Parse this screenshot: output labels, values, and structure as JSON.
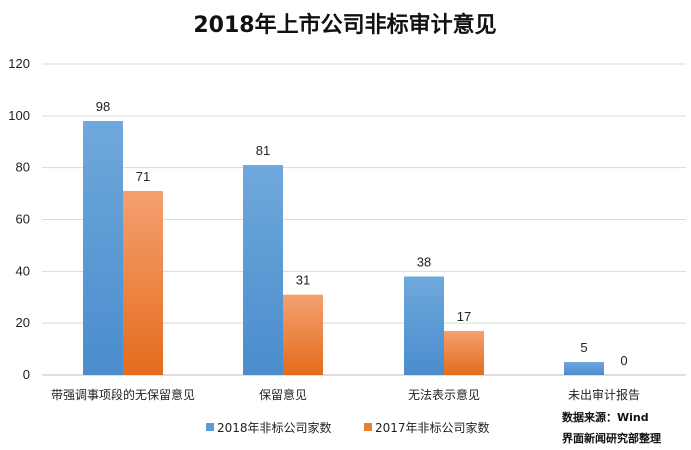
{
  "chart_data": {
    "type": "bar",
    "title": "2018年上市公司非标审计意见",
    "categories": [
      "带强调事项段的无保留意见",
      "保留意见",
      "无法表示意见",
      "未出审计报告"
    ],
    "series": [
      {
        "name": "2018年非标公司家数",
        "values": [
          98,
          81,
          38,
          5
        ],
        "color": "#5b9bd5"
      },
      {
        "name": "2017年非标公司家数",
        "values": [
          71,
          31,
          17,
          0
        ],
        "color": "#ed7d31"
      }
    ],
    "ylim": [
      0,
      120
    ],
    "yticks": [
      0,
      20,
      40,
      60,
      80,
      100,
      120
    ],
    "xlabel": "",
    "ylabel": "",
    "grid": true,
    "legend_position": "bottom"
  },
  "notes": {
    "source": "数据来源：Wind",
    "compiler": "界面新闻研究部整理"
  }
}
